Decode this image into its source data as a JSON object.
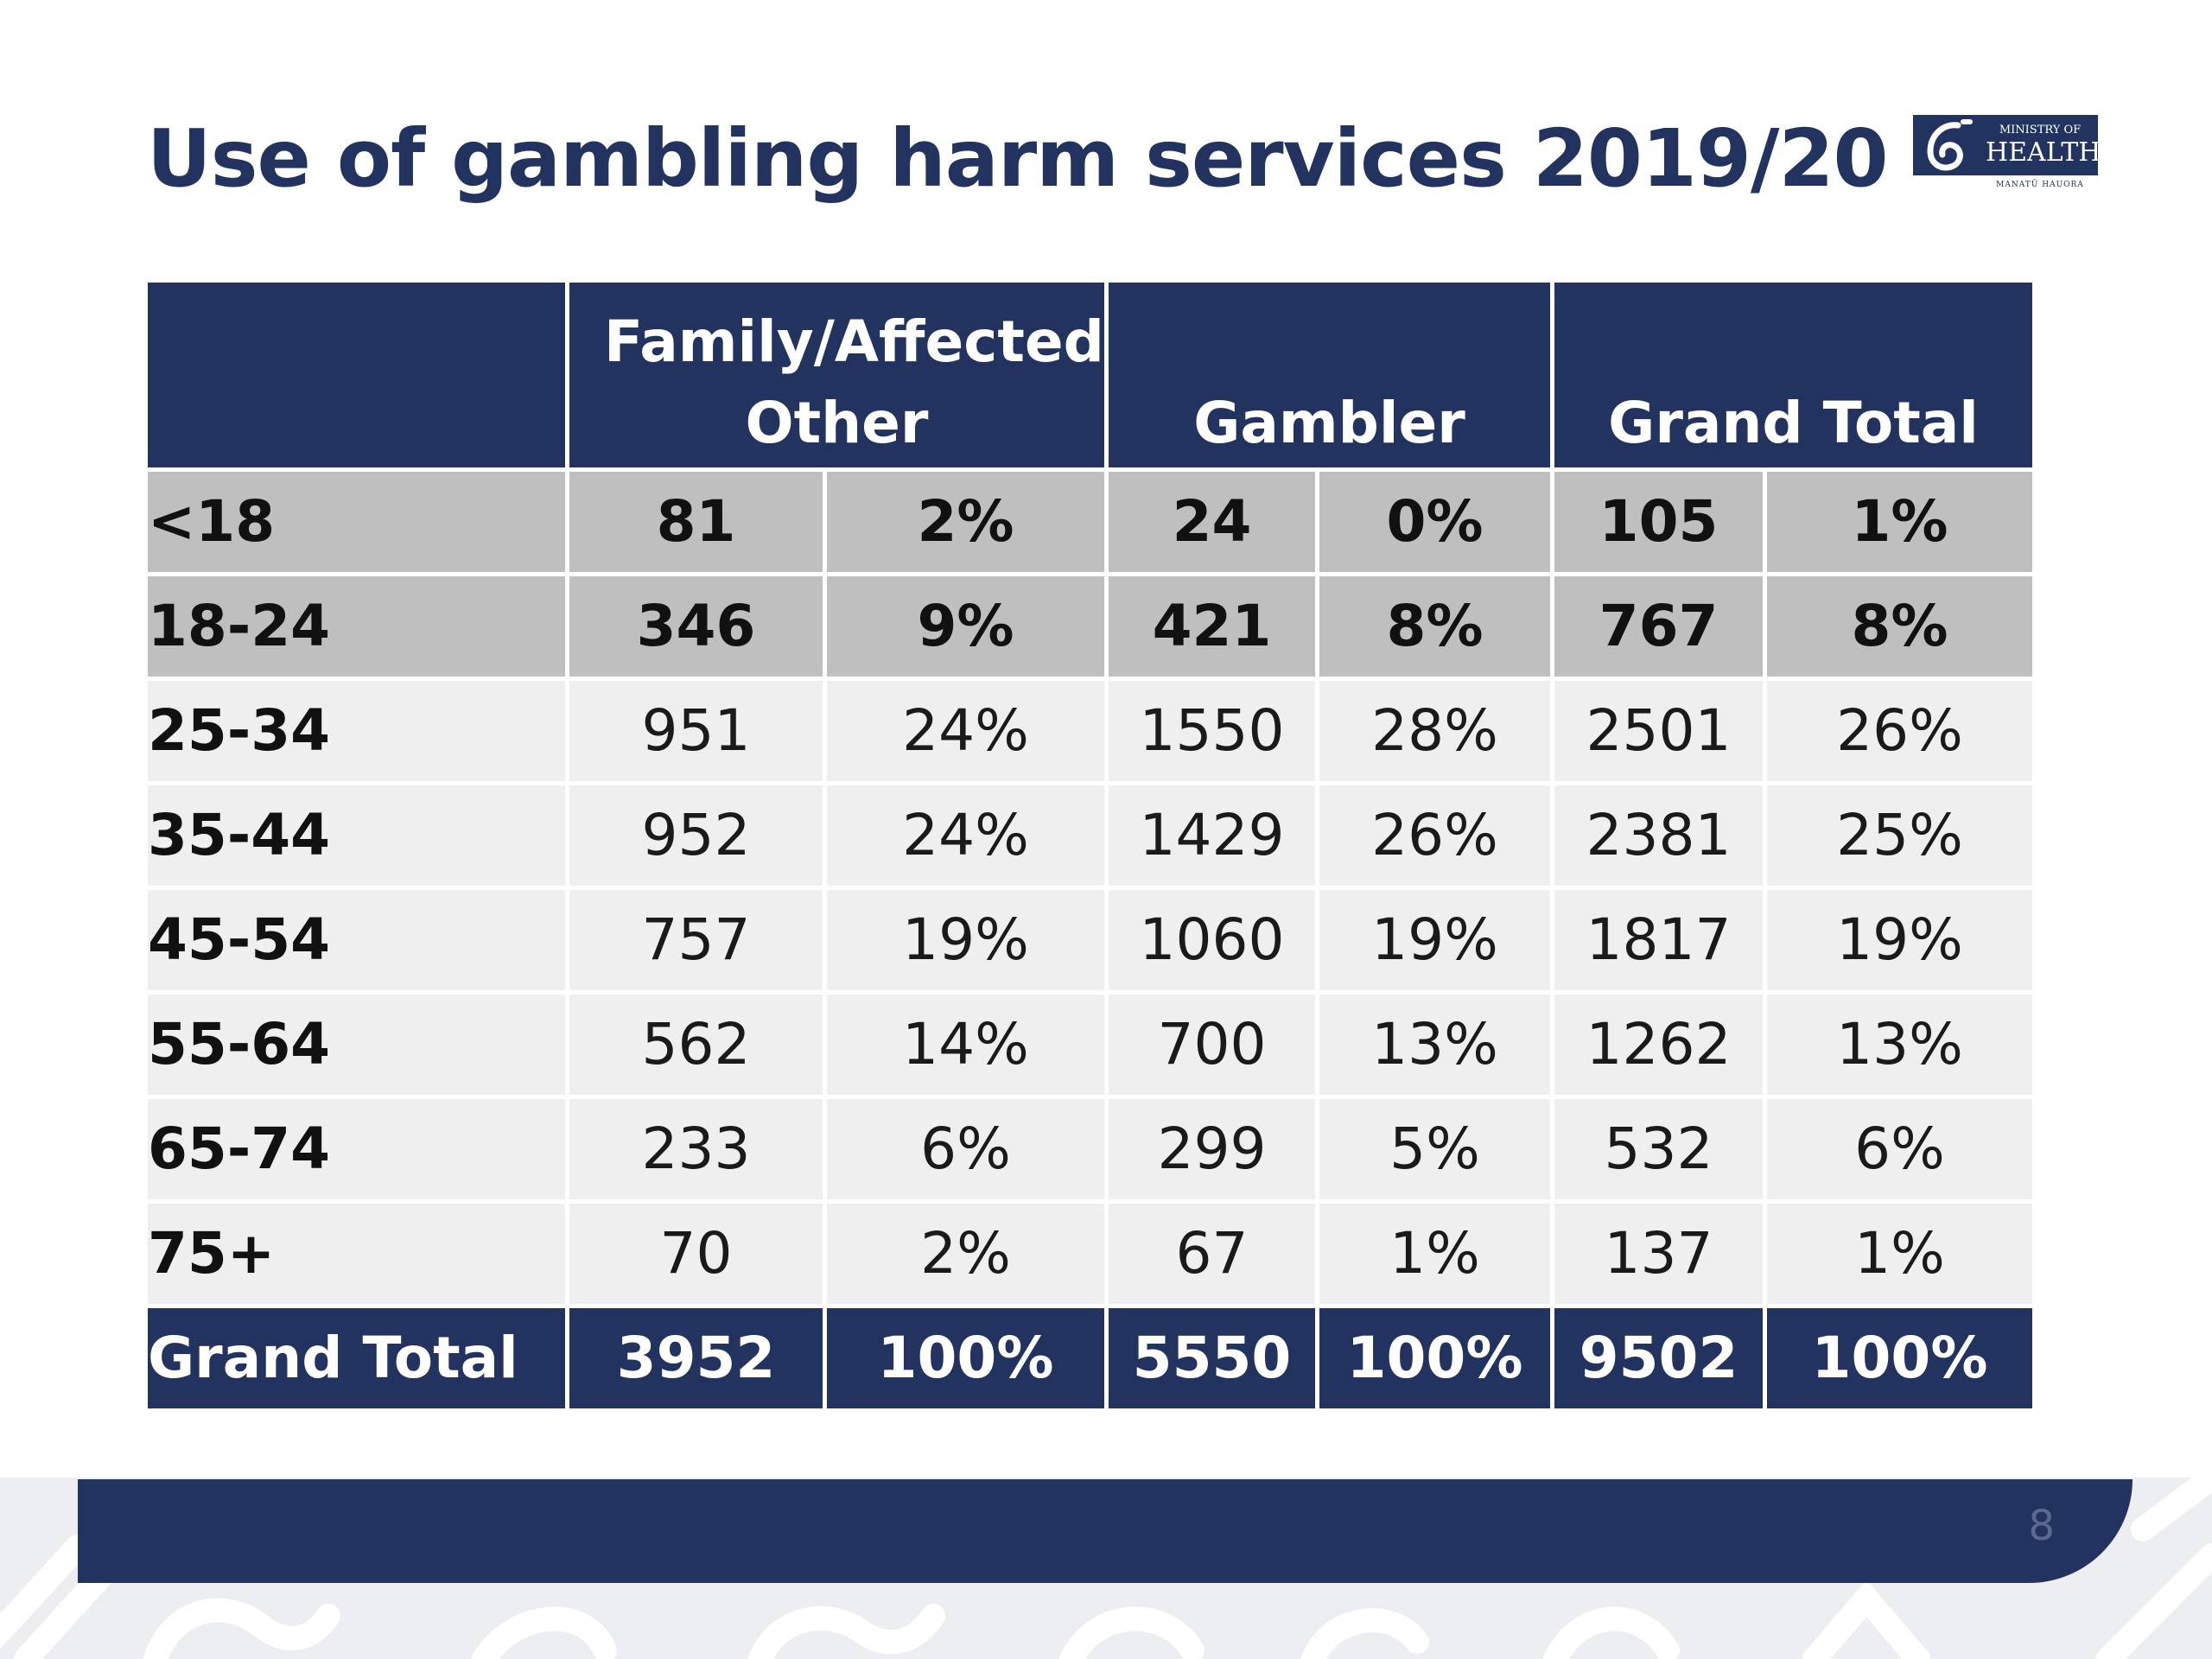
{
  "title": "Use of gambling harm services 2019/20",
  "logo": {
    "line1": "MINISTRY OF",
    "line2": "HEALTH",
    "subtitle": "MANATŪ HAUORA"
  },
  "table": {
    "headers": [
      "",
      "Family/Affected Other",
      "Gambler",
      "Grand Total"
    ],
    "rows": [
      {
        "label": "<18",
        "cells": [
          "81",
          "2%",
          "24",
          "0%",
          "105",
          "1%"
        ]
      },
      {
        "label": "18-24",
        "cells": [
          "346",
          "9%",
          "421",
          "8%",
          "767",
          "8%"
        ]
      },
      {
        "label": "25-34",
        "cells": [
          "951",
          "24%",
          "1550",
          "28%",
          "2501",
          "26%"
        ]
      },
      {
        "label": "35-44",
        "cells": [
          "952",
          "24%",
          "1429",
          "26%",
          "2381",
          "25%"
        ]
      },
      {
        "label": "45-54",
        "cells": [
          "757",
          "19%",
          "1060",
          "19%",
          "1817",
          "19%"
        ]
      },
      {
        "label": "55-64",
        "cells": [
          "562",
          "14%",
          "700",
          "13%",
          "1262",
          "13%"
        ]
      },
      {
        "label": "65-74",
        "cells": [
          "233",
          "6%",
          "299",
          "5%",
          "532",
          "6%"
        ]
      },
      {
        "label": "75+",
        "cells": [
          "70",
          "2%",
          "67",
          "1%",
          "137",
          "1%"
        ]
      },
      {
        "label": "Grand Total",
        "cells": [
          "3952",
          "100%",
          "5550",
          "100%",
          "9502",
          "100%"
        ]
      }
    ]
  },
  "page_number": "8",
  "colors": {
    "navy": "#22335f",
    "highlight_row": "#bfbfbf",
    "light_row": "#efefef"
  }
}
